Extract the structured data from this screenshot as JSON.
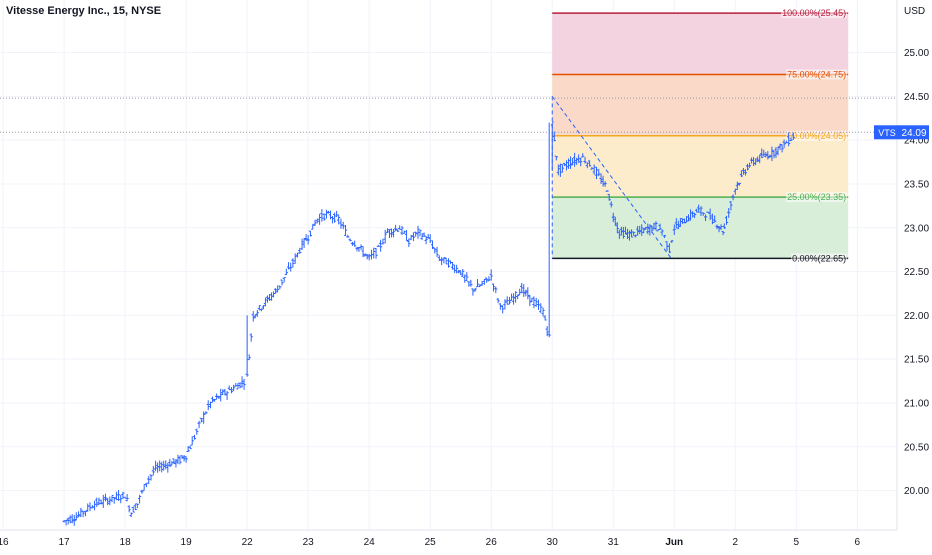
{
  "chart_data": {
    "type": "bar",
    "title": "Vitesse Energy Inc., 15, NYSE",
    "currency": "USD",
    "ticker": "VTS",
    "last_price": "24.09",
    "y_ticks": [
      "25.00",
      "24.50",
      "24.00",
      "23.50",
      "23.00",
      "22.50",
      "22.00",
      "21.50",
      "21.00",
      "20.50",
      "20.00"
    ],
    "ylim": [
      19.55,
      25.6
    ],
    "x_ticks": [
      {
        "label": "16",
        "day": 0
      },
      {
        "label": "17",
        "day": 1
      },
      {
        "label": "18",
        "day": 2
      },
      {
        "label": "19",
        "day": 3
      },
      {
        "label": "22",
        "day": 4
      },
      {
        "label": "23",
        "day": 5
      },
      {
        "label": "24",
        "day": 6
      },
      {
        "label": "25",
        "day": 7
      },
      {
        "label": "26",
        "day": 8
      },
      {
        "label": "30",
        "day": 9
      },
      {
        "label": "31",
        "day": 10
      },
      {
        "label": "Jun",
        "day": 11
      },
      {
        "label": "2",
        "day": 12
      },
      {
        "label": "5",
        "day": 13
      },
      {
        "label": "6",
        "day": 14
      }
    ],
    "xlim": [
      -0.05,
      14.65
    ],
    "price_path": [
      [
        1.0,
        19.65
      ],
      [
        1.2,
        19.7
      ],
      [
        1.5,
        19.85
      ],
      [
        1.75,
        19.9
      ],
      [
        2.0,
        19.95
      ],
      [
        2.1,
        19.75
      ],
      [
        2.2,
        19.85
      ],
      [
        2.35,
        20.1
      ],
      [
        2.5,
        20.25
      ],
      [
        2.7,
        20.3
      ],
      [
        2.9,
        20.35
      ],
      [
        3.0,
        20.4
      ],
      [
        3.1,
        20.55
      ],
      [
        3.25,
        20.8
      ],
      [
        3.4,
        21.0
      ],
      [
        3.6,
        21.1
      ],
      [
        3.85,
        21.2
      ],
      [
        3.95,
        21.25
      ],
      [
        4.0,
        21.3
      ],
      [
        4.1,
        22.0
      ],
      [
        4.3,
        22.15
      ],
      [
        4.5,
        22.3
      ],
      [
        4.75,
        22.6
      ],
      [
        4.9,
        22.8
      ],
      [
        5.0,
        22.9
      ],
      [
        5.15,
        23.1
      ],
      [
        5.3,
        23.15
      ],
      [
        5.5,
        23.1
      ],
      [
        5.65,
        22.9
      ],
      [
        5.8,
        22.8
      ],
      [
        6.0,
        22.65
      ],
      [
        6.15,
        22.75
      ],
      [
        6.3,
        22.95
      ],
      [
        6.5,
        23.0
      ],
      [
        6.65,
        22.85
      ],
      [
        6.8,
        22.95
      ],
      [
        7.0,
        22.85
      ],
      [
        7.15,
        22.65
      ],
      [
        7.3,
        22.6
      ],
      [
        7.5,
        22.5
      ],
      [
        7.7,
        22.3
      ],
      [
        7.85,
        22.35
      ],
      [
        8.0,
        22.45
      ],
      [
        8.15,
        22.1
      ],
      [
        8.3,
        22.15
      ],
      [
        8.5,
        22.3
      ],
      [
        8.7,
        22.15
      ],
      [
        8.85,
        22.05
      ],
      [
        8.95,
        21.75
      ],
      [
        9.0,
        24.2
      ],
      [
        9.1,
        23.65
      ],
      [
        9.3,
        23.75
      ],
      [
        9.5,
        23.8
      ],
      [
        9.65,
        23.7
      ],
      [
        9.8,
        23.55
      ],
      [
        9.9,
        23.45
      ],
      [
        10.0,
        23.15
      ],
      [
        10.1,
        22.95
      ],
      [
        10.3,
        22.92
      ],
      [
        10.5,
        22.97
      ],
      [
        10.7,
        23.02
      ],
      [
        10.8,
        22.97
      ],
      [
        10.92,
        22.75
      ],
      [
        11.0,
        23.0
      ],
      [
        11.2,
        23.1
      ],
      [
        11.4,
        23.2
      ],
      [
        11.55,
        23.15
      ],
      [
        11.7,
        23.05
      ],
      [
        11.8,
        22.97
      ],
      [
        11.82,
        23.0
      ],
      [
        12.0,
        23.45
      ],
      [
        12.2,
        23.7
      ],
      [
        12.4,
        23.8
      ],
      [
        12.6,
        23.85
      ],
      [
        12.8,
        23.95
      ],
      [
        12.95,
        24.05
      ],
      [
        13.0,
        24.12
      ]
    ],
    "fibonacci": {
      "levels": [
        {
          "label": "100.00%(25.45)",
          "price": 25.45,
          "color": "#b71c3c"
        },
        {
          "label": "75.00%(24.75)",
          "price": 24.75,
          "color": "#e65100"
        },
        {
          "label": "50.00%(24.05)",
          "price": 24.05,
          "color": "#f5a623"
        },
        {
          "label": "25.00%(23.35)",
          "price": 23.35,
          "color": "#4caf50"
        },
        {
          "label": "0.00%(22.65)",
          "price": 22.65,
          "color": "#131722"
        }
      ],
      "zone_colors": [
        "#f3d3df",
        "#fbd9c8",
        "#fdeccc",
        "#d9eed8"
      ],
      "day_start": 9.0,
      "day_end": 13.85,
      "trend_from": [
        9.0,
        24.5
      ],
      "trend_to": [
        10.95,
        22.65
      ]
    },
    "ref_levels": [
      24.48,
      24.09
    ],
    "bar_color": "#2962ff",
    "price_tag_color": "#2962ff"
  }
}
